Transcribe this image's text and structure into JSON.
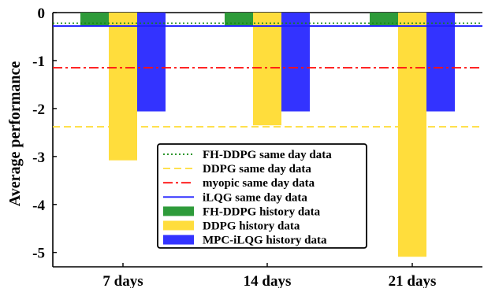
{
  "chart_data": {
    "type": "bar",
    "title": "",
    "xlabel": "",
    "ylabel": "Average performance",
    "ylim": [
      -5.3,
      0
    ],
    "yticks": [
      0,
      -1,
      -2,
      -3,
      -4,
      -5
    ],
    "ytick_labels": [
      "0",
      "-1",
      "-2",
      "-3",
      "-4",
      "-5"
    ],
    "grid": false,
    "legend_position": "lower-center",
    "categories": [
      "7 days",
      "14 days",
      "21 days"
    ],
    "series": [
      {
        "name": "FH-DDPG history data",
        "color": "#2e9b3a",
        "values": [
          -0.28,
          -0.27,
          -0.27
        ]
      },
      {
        "name": "DDPG history data",
        "color": "#ffdd3c",
        "values": [
          -3.08,
          -2.35,
          -5.09
        ]
      },
      {
        "name": "MPC-iLQG history data",
        "color": "#3333ff",
        "values": [
          -2.06,
          -2.06,
          -2.06
        ]
      }
    ],
    "reference_lines": [
      {
        "name": "FH-DDPG same day data",
        "color": "#118811",
        "style": "dotted",
        "value": -0.22
      },
      {
        "name": "DDPG same day data",
        "color": "#ffdd3c",
        "style": "dashed",
        "value": -2.38
      },
      {
        "name": "myopic same day data",
        "color": "#ff1010",
        "style": "dashdot",
        "value": -1.15
      },
      {
        "name": "iLQG same day data",
        "color": "#1d1dff",
        "style": "solid",
        "value": -0.28
      }
    ],
    "legend_order": [
      "FH-DDPG same day data",
      "DDPG same day data",
      "myopic same day data",
      "iLQG same day data",
      "FH-DDPG history data",
      "DDPG history data",
      "MPC-iLQG history data"
    ]
  }
}
